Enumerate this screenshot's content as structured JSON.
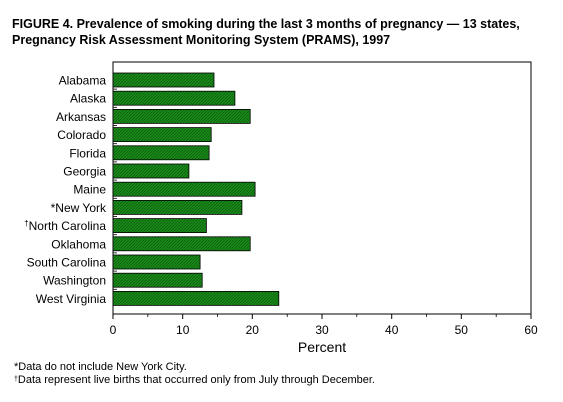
{
  "chart_data": {
    "type": "bar",
    "orientation": "horizontal",
    "title_line1": "FIGURE 4. Prevalence of smoking during the last 3 months of pregnancy — 13 states,",
    "title_line2": "Pregnancy Risk Assessment Monitoring System (PRAMS), 1997",
    "xlabel": "Percent",
    "ylabel": "",
    "xlim": [
      0,
      60
    ],
    "xticks": [
      0,
      10,
      20,
      30,
      40,
      50,
      60
    ],
    "grid": false,
    "bar_color": "#1a8c1a",
    "categories": [
      {
        "label": "Alabama",
        "mark": ""
      },
      {
        "label": "Alaska",
        "mark": ""
      },
      {
        "label": "Arkansas",
        "mark": ""
      },
      {
        "label": "Colorado",
        "mark": ""
      },
      {
        "label": "Florida",
        "mark": ""
      },
      {
        "label": "Georgia",
        "mark": ""
      },
      {
        "label": "Maine",
        "mark": ""
      },
      {
        "label": "New York",
        "mark": "*"
      },
      {
        "label": "North Carolina",
        "mark": "†"
      },
      {
        "label": "Oklahoma",
        "mark": ""
      },
      {
        "label": "South Carolina",
        "mark": ""
      },
      {
        "label": "Washington",
        "mark": ""
      },
      {
        "label": "West Virginia",
        "mark": ""
      }
    ],
    "values": [
      14.5,
      17.5,
      19.7,
      14.1,
      13.8,
      10.9,
      20.4,
      18.5,
      13.4,
      19.7,
      12.5,
      12.8,
      23.8
    ]
  },
  "footnotes": {
    "note1_mark": "*",
    "note1_text": "Data do not include New York City.",
    "note2_mark": "†",
    "note2_text": "Data represent live births that occurred only from July through December."
  }
}
